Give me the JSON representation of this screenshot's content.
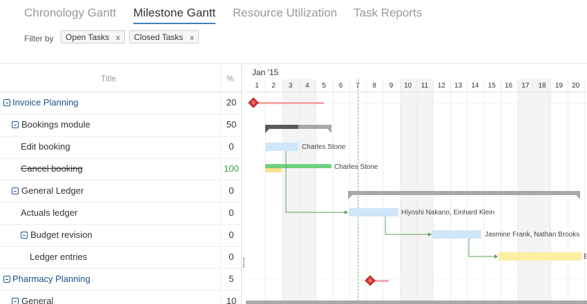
{
  "tabs": [
    {
      "label": "Chronology Gantt",
      "active": false
    },
    {
      "label": "Milestone Gantt",
      "active": true
    },
    {
      "label": "Resource Utilization",
      "active": false
    },
    {
      "label": "Task Reports",
      "active": false
    }
  ],
  "filter": {
    "label": "Filter by",
    "chips": [
      {
        "label": "Open Tasks",
        "remove": "x"
      },
      {
        "label": "Closed Tasks",
        "remove": "x"
      }
    ]
  },
  "grid": {
    "header": {
      "title": "Title",
      "percent": "%"
    },
    "rows": [
      {
        "title": "Invoice Planning",
        "percent": "20",
        "level": 0,
        "type": "project",
        "expanded": true,
        "done": false
      },
      {
        "title": "Bookings module",
        "percent": "50",
        "level": 1,
        "type": "group",
        "expanded": true,
        "done": false
      },
      {
        "title": "Edit booking",
        "percent": "0",
        "level": 2,
        "type": "task",
        "done": false
      },
      {
        "title": "Cancel booking",
        "percent": "100",
        "level": 2,
        "type": "task",
        "done": true
      },
      {
        "title": "General Ledger",
        "percent": "0",
        "level": 1,
        "type": "group",
        "expanded": true,
        "done": false
      },
      {
        "title": "Actuals ledger",
        "percent": "0",
        "level": 2,
        "type": "task",
        "done": false
      },
      {
        "title": "Budget revision",
        "percent": "0",
        "level": 2,
        "type": "group",
        "expanded": true,
        "done": false
      },
      {
        "title": "Ledger entries",
        "percent": "0",
        "level": 3,
        "type": "task",
        "done": false
      },
      {
        "title": "Pharmacy Planning",
        "percent": "5",
        "level": 0,
        "type": "project",
        "expanded": true,
        "done": false
      },
      {
        "title": "General",
        "percent": "10",
        "level": 1,
        "type": "group",
        "expanded": true,
        "done": false
      }
    ]
  },
  "timeline": {
    "month": "Jan '15",
    "days": [
      "1",
      "2",
      "3",
      "4",
      "5",
      "6",
      "7",
      "8",
      "9",
      "10",
      "11",
      "12",
      "13",
      "14",
      "15",
      "16",
      "17",
      "18",
      "19",
      "20"
    ],
    "weekend_days": [
      3,
      4,
      10,
      11,
      17,
      18
    ],
    "today_day": 7,
    "bar_labels": {
      "edit_booking": "Charles Stone",
      "cancel_booking": "Charles Stone",
      "actuals_ledger": "Hiyoshi Nakano, Einhard Klein",
      "budget_revision": "Jasmine Frank, Nathan Brooks",
      "ledger_entries": "E"
    }
  },
  "colors": {
    "accent": "#3f7fc1",
    "project_text": "#1d4f8f",
    "task_bar": "#cfe6fb",
    "done_bar": "#6fd07f",
    "ledger_bar": "#fbf0a0",
    "milestone": "#d93b3b",
    "project_line": "#f5a8a8",
    "summary_bar": "#a8a8a8",
    "summary_done": "#5a5a5a",
    "today": "#6cbb6c",
    "link": "#5aa05a"
  }
}
